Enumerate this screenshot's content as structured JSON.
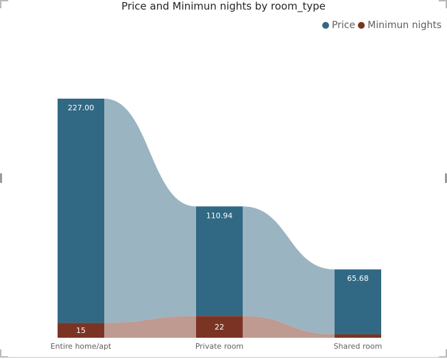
{
  "title": "Price and Minimun nights by room_type",
  "colors": {
    "price": "#316883",
    "price_ribbon": "#9ab4c2",
    "min_nights": "#7b3424",
    "min_nights_ribbon": "#be9a91"
  },
  "legend": [
    {
      "name": "Price",
      "color": "#316883"
    },
    {
      "name": "Minimun nights",
      "color": "#7b3424"
    }
  ],
  "chart_data": {
    "type": "bar",
    "subtype": "stacked ribbon column",
    "title": "Price and Minimun nights by room_type",
    "categories": [
      "Entire home/apt",
      "Private room",
      "Shared room"
    ],
    "series": [
      {
        "name": "Minimun nights",
        "values": [
          15,
          22,
          3.5
        ],
        "labels": [
          "15",
          "22",
          ""
        ]
      },
      {
        "name": "Price",
        "values": [
          227.0,
          110.94,
          65.68
        ],
        "labels": [
          "227.00",
          "110.94",
          "65.68"
        ]
      }
    ],
    "xlabel": "",
    "ylabel": "",
    "ylim": [
      0,
      242
    ],
    "grid": false,
    "legend_position": "top-right"
  }
}
